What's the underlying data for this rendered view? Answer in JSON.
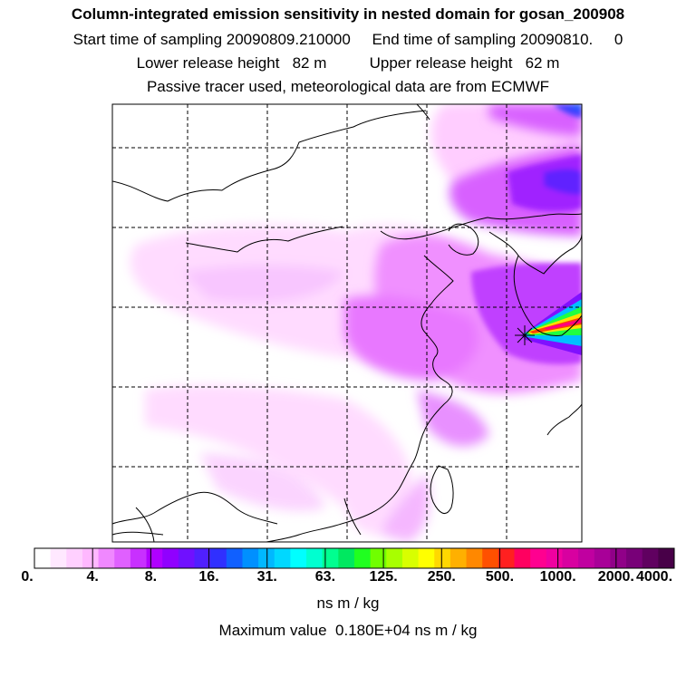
{
  "titles": {
    "line1": "Column-integrated emission sensitivity in nested domain for gosan_200908",
    "line2": "Start time of sampling 20090809.210000     End time of sampling 20090810.     0",
    "line3": "Lower release height   82 m          Upper release height   62 m",
    "line4": "Passive tracer used, meteorological data are from ECMWF"
  },
  "colorbar": {
    "tick_labels": [
      "0.",
      "4.",
      "8.",
      "16.",
      "31.",
      "63.",
      "125.",
      "250.",
      "500.",
      "1000.",
      "2000.",
      "4000."
    ],
    "colors": [
      "#ffffff",
      "#ffe8ff",
      "#ffd0ff",
      "#ffb8ff",
      "#f088ff",
      "#e060ff",
      "#c830ff",
      "#b000ff",
      "#9000ff",
      "#7010ff",
      "#5020ff",
      "#3030ff",
      "#1060ff",
      "#0090ff",
      "#00b8ff",
      "#00d8ff",
      "#00ffff",
      "#00ffd0",
      "#00ff90",
      "#00e860",
      "#20ff20",
      "#70ff00",
      "#a8ff00",
      "#d8ff00",
      "#ffff00",
      "#ffd800",
      "#ffb000",
      "#ff8800",
      "#ff5000",
      "#ff2020",
      "#ff0060",
      "#ff0090",
      "#f000a0",
      "#d800a0",
      "#c000a0",
      "#a80098",
      "#900088",
      "#780078",
      "#600060",
      "#480048"
    ],
    "units": "ns m / kg"
  },
  "max_value_text": "Maximum value  0.180E+04 ns m / kg"
}
